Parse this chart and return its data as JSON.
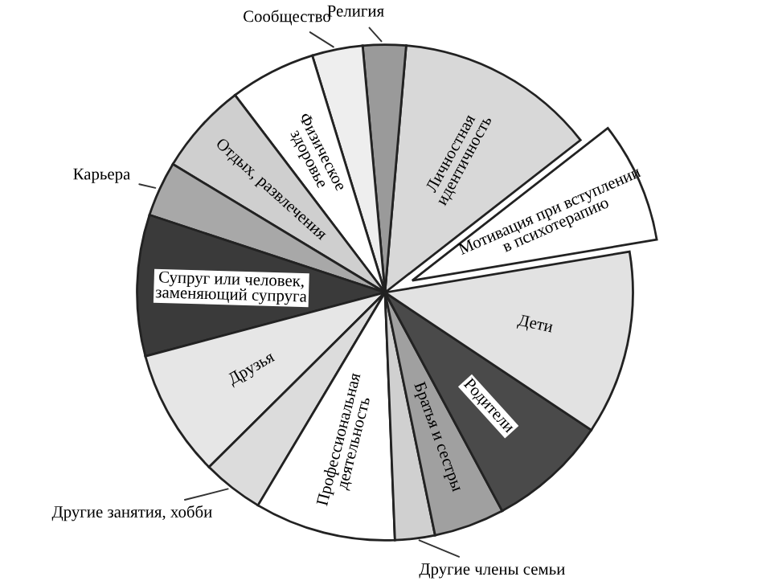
{
  "chart_data": {
    "type": "pie",
    "categories": [
      "Мотивация при вступлении в психотерапию",
      "Личностная идентичность",
      "Религия",
      "Сообщество",
      "Физическое здоровье",
      "Отдых, развлечения",
      "Карьера",
      "Супруг или человек, заменяющий супруга",
      "Друзья",
      "Другие занятия, хобби",
      "Профессиональная деятельность",
      "Другие члены семьи",
      "Братья и сестры",
      "Родители",
      "Дети"
    ],
    "values": [
      7.9,
      13.1,
      2.8,
      3.3,
      5.6,
      6.0,
      3.6,
      9.2,
      8.3,
      4.0,
      9.2,
      2.6,
      4.6,
      7.8,
      12.0
    ],
    "colors": [
      "#ffffff",
      "#d8d8d8",
      "#9a9a9a",
      "#eeeeee",
      "#ffffff",
      "#cfcfcf",
      "#a8a8a8",
      "#3a3a3a",
      "#e6e6e6",
      "#dcdcdc",
      "#ffffff",
      "#d0d0d0",
      "#a0a0a0",
      "#4a4a4a",
      "#e2e2e2"
    ],
    "legend": false
  }
}
